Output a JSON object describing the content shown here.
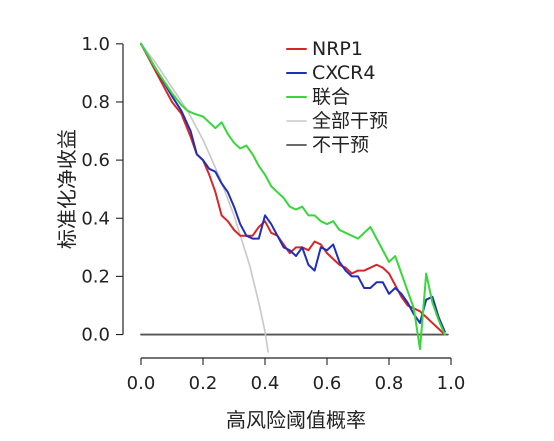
{
  "chart_data": {
    "type": "line",
    "xlabel": "高风险阈值概率",
    "ylabel": "标准化净收益",
    "xlim": [
      0,
      1
    ],
    "ylim": [
      -0.06,
      1.02
    ],
    "xticks": [
      "0.0",
      "0.2",
      "0.4",
      "0.6",
      "0.8",
      "1.0"
    ],
    "yticks": [
      "0.0",
      "0.2",
      "0.4",
      "0.6",
      "0.8",
      "1.0"
    ],
    "grid": false,
    "legend_position": "top-right",
    "series": [
      {
        "name": "NRP1",
        "color": "#d62728",
        "x": [
          0.0,
          0.05,
          0.1,
          0.13,
          0.16,
          0.18,
          0.2,
          0.22,
          0.24,
          0.26,
          0.28,
          0.3,
          0.32,
          0.34,
          0.36,
          0.38,
          0.4,
          0.42,
          0.44,
          0.46,
          0.48,
          0.5,
          0.52,
          0.54,
          0.56,
          0.58,
          0.6,
          0.62,
          0.64,
          0.66,
          0.68,
          0.7,
          0.72,
          0.74,
          0.76,
          0.78,
          0.8,
          0.82,
          0.84,
          0.86,
          0.88,
          0.9,
          0.92,
          0.94,
          0.96,
          0.98
        ],
        "values": [
          1.0,
          0.9,
          0.8,
          0.76,
          0.68,
          0.62,
          0.6,
          0.55,
          0.49,
          0.41,
          0.39,
          0.36,
          0.34,
          0.34,
          0.34,
          0.37,
          0.39,
          0.35,
          0.34,
          0.31,
          0.28,
          0.3,
          0.3,
          0.29,
          0.32,
          0.31,
          0.28,
          0.26,
          0.24,
          0.23,
          0.21,
          0.22,
          0.22,
          0.23,
          0.24,
          0.23,
          0.21,
          0.17,
          0.13,
          0.1,
          0.09,
          0.08,
          0.06,
          0.04,
          0.02,
          0.0
        ]
      },
      {
        "name": "CXCR4",
        "color": "#1f2fb8",
        "x": [
          0.0,
          0.05,
          0.1,
          0.13,
          0.16,
          0.18,
          0.2,
          0.22,
          0.24,
          0.26,
          0.28,
          0.3,
          0.32,
          0.34,
          0.36,
          0.38,
          0.4,
          0.42,
          0.44,
          0.46,
          0.48,
          0.5,
          0.52,
          0.54,
          0.56,
          0.58,
          0.6,
          0.62,
          0.64,
          0.66,
          0.68,
          0.7,
          0.72,
          0.74,
          0.76,
          0.78,
          0.8,
          0.82,
          0.84,
          0.86,
          0.88,
          0.9,
          0.92,
          0.94,
          0.96,
          0.98
        ],
        "values": [
          1.0,
          0.91,
          0.82,
          0.77,
          0.7,
          0.62,
          0.6,
          0.57,
          0.56,
          0.52,
          0.49,
          0.44,
          0.38,
          0.34,
          0.33,
          0.33,
          0.41,
          0.38,
          0.34,
          0.3,
          0.29,
          0.27,
          0.3,
          0.24,
          0.22,
          0.3,
          0.29,
          0.31,
          0.25,
          0.22,
          0.2,
          0.2,
          0.16,
          0.16,
          0.18,
          0.18,
          0.14,
          0.16,
          0.14,
          0.11,
          0.07,
          0.04,
          0.12,
          0.13,
          0.06,
          0.01
        ]
      },
      {
        "name": "联合",
        "color": "#38d63a",
        "x": [
          0.0,
          0.05,
          0.1,
          0.13,
          0.15,
          0.17,
          0.2,
          0.22,
          0.24,
          0.26,
          0.28,
          0.3,
          0.32,
          0.34,
          0.36,
          0.38,
          0.4,
          0.42,
          0.44,
          0.46,
          0.48,
          0.5,
          0.52,
          0.54,
          0.56,
          0.58,
          0.6,
          0.62,
          0.64,
          0.66,
          0.68,
          0.7,
          0.72,
          0.74,
          0.76,
          0.78,
          0.8,
          0.82,
          0.84,
          0.86,
          0.88,
          0.9,
          0.92,
          0.94,
          0.96,
          0.98
        ],
        "values": [
          1.0,
          0.91,
          0.83,
          0.79,
          0.77,
          0.76,
          0.75,
          0.73,
          0.71,
          0.73,
          0.69,
          0.66,
          0.64,
          0.65,
          0.62,
          0.58,
          0.55,
          0.51,
          0.49,
          0.47,
          0.44,
          0.43,
          0.44,
          0.41,
          0.41,
          0.39,
          0.38,
          0.39,
          0.36,
          0.35,
          0.34,
          0.33,
          0.35,
          0.37,
          0.33,
          0.29,
          0.25,
          0.27,
          0.21,
          0.15,
          0.09,
          -0.05,
          0.21,
          0.11,
          0.05,
          0.0
        ]
      },
      {
        "name": "全部干预",
        "color": "#c8c8c8",
        "x": [
          0.0,
          0.05,
          0.1,
          0.15,
          0.2,
          0.25,
          0.3,
          0.35,
          0.38,
          0.4,
          0.41
        ],
        "values": [
          1.0,
          0.93,
          0.85,
          0.77,
          0.67,
          0.55,
          0.41,
          0.24,
          0.11,
          0.01,
          -0.06
        ]
      },
      {
        "name": "不干预",
        "color": "#555555",
        "x": [
          0.0,
          0.99
        ],
        "values": [
          0.0,
          0.0
        ]
      }
    ]
  }
}
